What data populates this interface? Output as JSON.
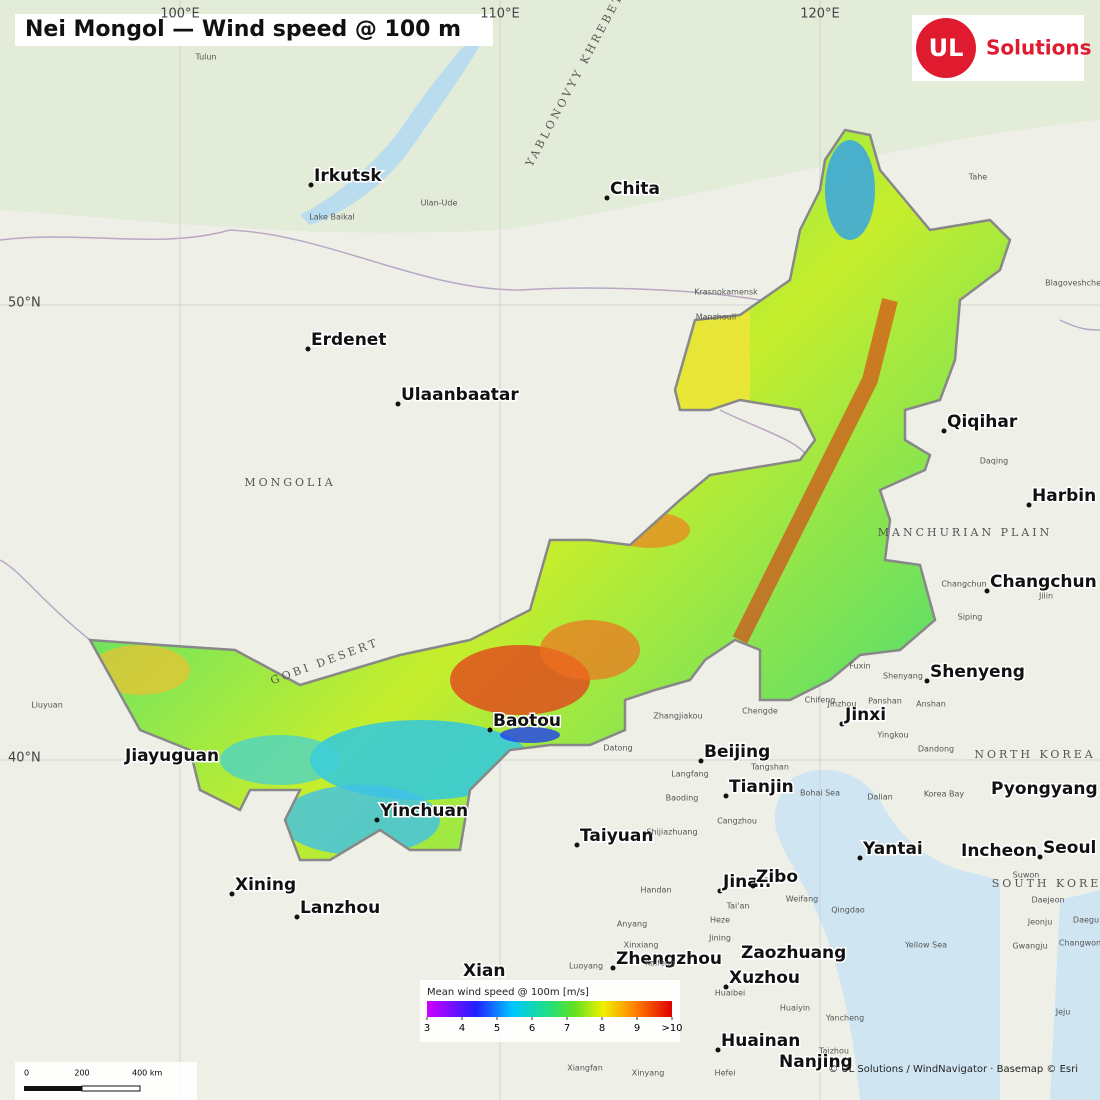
{
  "title": "Nei Mongol — Wind speed @ 100 m",
  "logo": {
    "mark": "UL",
    "text": "Solutions"
  },
  "graticule": [
    "100°E",
    "110°E",
    "120°E",
    "50°N",
    "40°N"
  ],
  "regions": [
    "MONGOLIA",
    "GOBI DESERT",
    "MANCHURIAN PLAIN",
    "YABLONOVYY KHREBET",
    "NORTH KOREA",
    "SOUTH KOREA"
  ],
  "cities": [
    "Irkutsk",
    "Chita",
    "Erdenet",
    "Ulaanbaatar",
    "Qiqihar",
    "Harbin",
    "Changchun",
    "Shenyeng",
    "Jinxi",
    "Baotou",
    "Jiayuguan",
    "Beijing",
    "Tianjin",
    "Pyongyang",
    "Yinchuan",
    "Taiyuan",
    "Yantai",
    "Incheon",
    "Seoul",
    "Xining",
    "Jinan",
    "Zibo",
    "Lanzhou",
    "Zhengzhou",
    "Zaozhuang",
    "Xuzhou",
    "Xian",
    "Huainan",
    "Nanjing"
  ],
  "places": [
    "Tulun",
    "Ulan-Ude",
    "Lake Baikal",
    "Krasnokamensk",
    "Manzhouli",
    "Daqing",
    "Jilin",
    "Siping",
    "Fuxin",
    "Chengde",
    "Zhangjiakou",
    "Datong",
    "Langfang",
    "Tangshan",
    "Baoding",
    "Cangzhou",
    "Shijiazhuang",
    "Handan",
    "Anyang",
    "Weifang",
    "Qingdao",
    "Dalian",
    "Dandong",
    "Liuyuan",
    "Bohai Sea",
    "Korea Bay",
    "Yellow Sea",
    "Tahe",
    "Blagoveshchensk",
    "Chifeng",
    "Jinzhou",
    "Panshan",
    "Yingkou",
    "Anshan",
    "Shenyang",
    "Changchun",
    "Luoyang",
    "Xinxiang",
    "Kaifeng",
    "Heze",
    "Jining",
    "Tai'an",
    "Huaibei",
    "Huaiyin",
    "Yancheng",
    "Taizhou",
    "Hefei",
    "Xiangfan",
    "Xinyang",
    "Suwon",
    "Daejeon",
    "Jeonju",
    "Gwangju",
    "Daegu",
    "Changwon",
    "Jeju"
  ],
  "legend": {
    "title": "Mean wind speed @ 100m [m/s]",
    "ticks": [
      3,
      4,
      5,
      6,
      7,
      8,
      9,
      {
        "value": 10,
        "label": ">10"
      }
    ]
  },
  "scale_bar": [
    "0",
    "200",
    "400 km"
  ],
  "attribution": "© UL Solutions / WindNavigator · Basemap © Esri"
}
